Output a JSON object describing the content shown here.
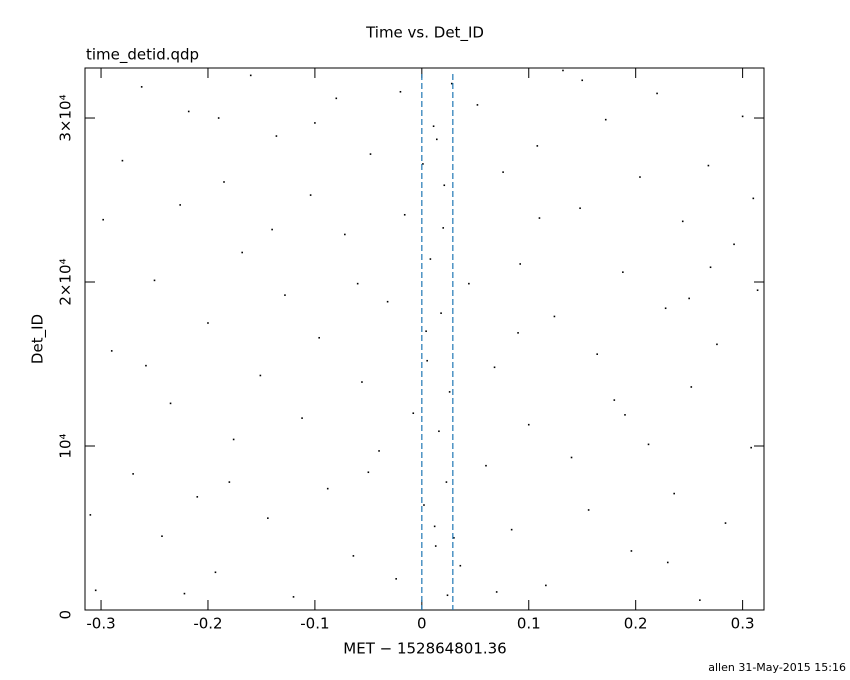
{
  "chart_data": {
    "type": "scatter",
    "title": "Time vs. Det_ID",
    "subtitle": "time_detid.qdp",
    "x_label": "MET − 152864801.36",
    "y_label": "Det_ID",
    "footer": "allen 31-May-2015 15:16",
    "color": "#000000",
    "marker_lines": {
      "color": "#1f77b4",
      "values": [
        0,
        0.029
      ]
    },
    "xlim": [
      -0.315,
      0.32
    ],
    "ylim": [
      0,
      33050
    ],
    "xticks": [
      -0.3,
      -0.2,
      -0.1,
      0,
      0.1,
      0.2,
      0.3
    ],
    "yticks": [
      0,
      {
        "value": 10000,
        "label": "10⁴"
      },
      {
        "value": 20000,
        "label": "2×10⁴"
      },
      {
        "value": 30000,
        "label": "3×10⁴"
      }
    ],
    "x": [
      -0.305,
      -0.29,
      -0.28,
      -0.27,
      -0.262,
      -0.25,
      -0.243,
      -0.235,
      -0.226,
      -0.218,
      -0.21,
      -0.2,
      -0.193,
      -0.185,
      -0.176,
      -0.168,
      -0.16,
      -0.151,
      -0.144,
      -0.136,
      -0.128,
      -0.12,
      -0.112,
      -0.104,
      -0.096,
      -0.088,
      -0.08,
      -0.072,
      -0.064,
      -0.056,
      -0.048,
      -0.04,
      -0.032,
      -0.024,
      -0.016,
      -0.008,
      0.002,
      0.005,
      0.008,
      0.011,
      0.013,
      0.016,
      0.018,
      0.021,
      0.023,
      0.026,
      0.028,
      0.004,
      0.012,
      0.02,
      0.036,
      0.044,
      0.052,
      0.06,
      0.068,
      0.076,
      0.084,
      0.092,
      0.1,
      0.108,
      0.116,
      0.124,
      0.132,
      0.14,
      0.148,
      0.156,
      0.164,
      0.172,
      0.18,
      0.188,
      0.196,
      0.204,
      0.212,
      0.22,
      0.228,
      0.236,
      0.244,
      0.252,
      0.26,
      0.268,
      0.276,
      0.284,
      0.292,
      0.3,
      0.308,
      0.314,
      -0.298,
      -0.258,
      -0.222,
      -0.18,
      -0.14,
      -0.1,
      -0.06,
      -0.02,
      0.001,
      0.03,
      0.07,
      0.11,
      0.15,
      0.19,
      0.23,
      0.27,
      0.31,
      -0.31,
      -0.19,
      -0.05,
      0.014,
      0.024,
      0.09,
      0.25
    ],
    "values": [
      1200,
      15800,
      27400,
      8300,
      31900,
      20100,
      4500,
      12600,
      24700,
      30400,
      6900,
      17500,
      2300,
      26100,
      10400,
      21800,
      32600,
      14300,
      5600,
      28900,
      19200,
      800,
      11700,
      25300,
      16600,
      7400,
      31200,
      22900,
      3300,
      13900,
      27800,
      9700,
      18800,
      1900,
      24100,
      12000,
      6400,
      15200,
      21400,
      29500,
      3900,
      10900,
      18100,
      25900,
      7800,
      13300,
      32100,
      17000,
      5100,
      23300,
      2700,
      19900,
      30800,
      8800,
      14800,
      26700,
      4900,
      21100,
      11300,
      28300,
      1500,
      17900,
      32900,
      9300,
      24500,
      6100,
      15600,
      29900,
      12800,
      20600,
      3600,
      26400,
      10100,
      31500,
      18400,
      7100,
      23700,
      13600,
      600,
      27100,
      16200,
      5300,
      22300,
      30100,
      9900,
      19500,
      23800,
      14900,
      1000,
      7800,
      23200,
      29700,
      19900,
      31600,
      27200,
      4400,
      1100,
      23900,
      32300,
      11900,
      2900,
      20900,
      25100,
      5800,
      30000,
      8400,
      28700,
      900,
      16900,
      19000
    ]
  }
}
